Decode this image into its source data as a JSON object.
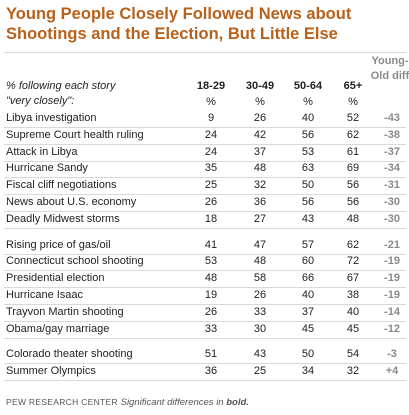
{
  "title": "Young People Closely Followed News about Shootings and the Election, But Little Else",
  "table": {
    "stub_header": [
      "% following each story",
      "\"very closely\":"
    ],
    "columns": [
      "18-29",
      "30-49",
      "50-64",
      "65+"
    ],
    "unit": "%",
    "diff_header": [
      "Young-",
      "Old diff"
    ],
    "groups": [
      [
        [
          "Libya investigation",
          9,
          26,
          40,
          52,
          -43
        ],
        [
          "Supreme Court health ruling",
          24,
          42,
          56,
          62,
          -38
        ],
        [
          "Attack in Libya",
          24,
          37,
          53,
          61,
          -37
        ],
        [
          "Hurricane Sandy",
          35,
          48,
          63,
          69,
          -34
        ],
        [
          "Fiscal cliff negotiations",
          25,
          32,
          50,
          56,
          -31
        ],
        [
          "News about U.S. economy",
          26,
          36,
          56,
          56,
          -30
        ],
        [
          "Deadly Midwest storms",
          18,
          27,
          43,
          48,
          -30
        ]
      ],
      [
        [
          "Rising price of gas/oil",
          41,
          47,
          57,
          62,
          -21
        ],
        [
          "Connecticut school shooting",
          53,
          48,
          60,
          72,
          -19
        ],
        [
          "Presidential election",
          48,
          58,
          66,
          67,
          -19
        ],
        [
          "Hurricane Isaac",
          19,
          26,
          40,
          38,
          -19
        ],
        [
          "Trayvon Martin shooting",
          26,
          33,
          37,
          40,
          -14
        ],
        [
          "Obama/gay marriage",
          33,
          30,
          45,
          45,
          -12
        ]
      ],
      [
        [
          "Colorado theater shooting",
          51,
          43,
          50,
          54,
          -3
        ],
        [
          "Summer Olympics",
          36,
          25,
          34,
          32,
          "+4"
        ]
      ]
    ]
  },
  "footer": {
    "source": "PEW RESEARCH CENTER",
    "note": "Significant differences in",
    "emphasis": "bold."
  }
}
